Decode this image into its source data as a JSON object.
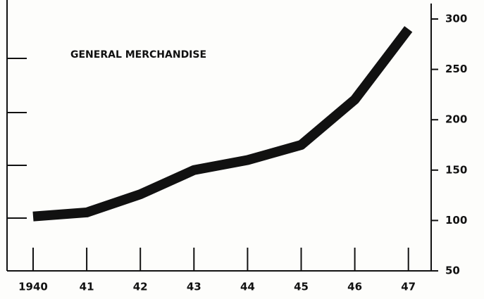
{
  "chart_data": {
    "type": "line",
    "annotation": "GENERAL MERCHANDISE",
    "categories": [
      "1940",
      "41",
      "42",
      "43",
      "44",
      "45",
      "46",
      "47"
    ],
    "series": [
      {
        "name": "General Merchandise",
        "color": "#111111",
        "values": [
          104,
          108,
          126,
          150,
          160,
          175,
          220,
          290
        ]
      }
    ],
    "ylim": [
      50,
      300
    ],
    "yticks": [
      50,
      100,
      150,
      200,
      250,
      300
    ],
    "yaxis_side": "right"
  }
}
